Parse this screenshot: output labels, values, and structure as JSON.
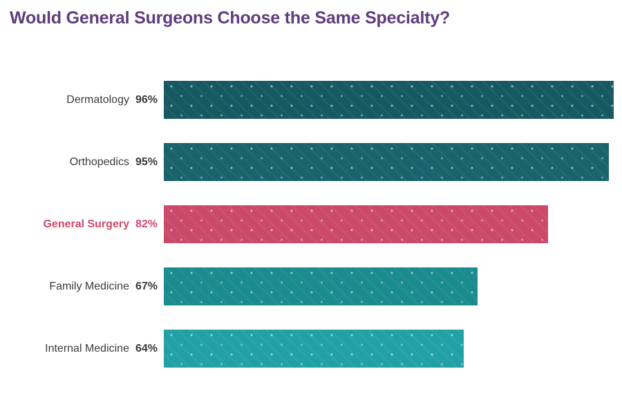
{
  "title": "Would General Surgeons Choose the Same Specialty?",
  "title_color": "#5f3d7d",
  "chart_data": {
    "type": "bar",
    "orientation": "horizontal",
    "title": "Would General Surgeons Choose the Same Specialty?",
    "categories": [
      "Dermatology",
      "Orthopedics",
      "General Surgery",
      "Family Medicine",
      "Internal Medicine"
    ],
    "values": [
      96,
      95,
      82,
      67,
      64
    ],
    "value_labels": [
      "96%",
      "95%",
      "82%",
      "67%",
      "64%"
    ],
    "bar_colors": [
      "#175962",
      "#18636c",
      "#cb4a6a",
      "#1a8b8f",
      "#21a1a6"
    ],
    "label_colors": [
      "#3b3b3b",
      "#3b3b3b",
      "#d04a6d",
      "#3b3b3b",
      "#3b3b3b"
    ],
    "highlight_index": 2,
    "highlight_color": "#d04a6d",
    "xlabel": "",
    "ylabel": "",
    "xlim": [
      0,
      100
    ],
    "grid": false,
    "legend": "none",
    "axis_ticks_visible": false
  }
}
